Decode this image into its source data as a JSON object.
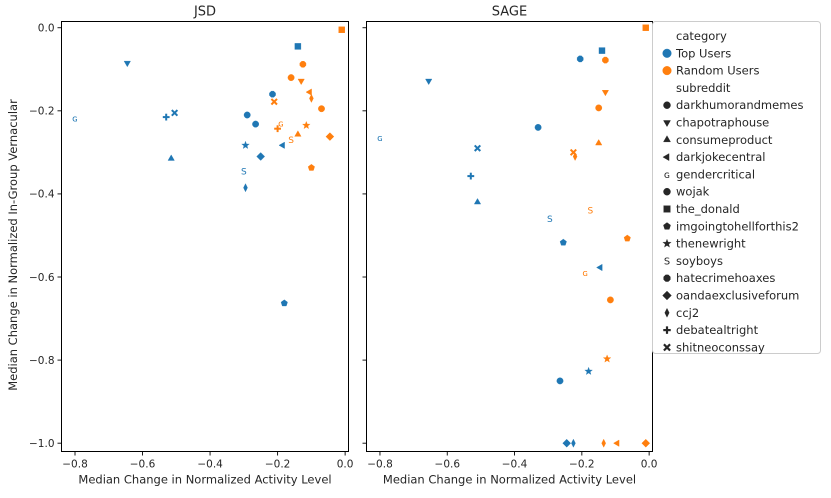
{
  "figure_ylabel": "Median Change in Normalized In-Group Vernacular",
  "legend": {
    "category_title": "category",
    "categories": [
      {
        "name": "Top Users",
        "color": "#1f77b4"
      },
      {
        "name": "Random Users",
        "color": "#ff7f0e"
      }
    ],
    "subreddit_title": "subreddit",
    "subreddits": [
      {
        "name": "darkhumorandmemes",
        "marker": "circle"
      },
      {
        "name": "chapotraphouse",
        "marker": "triangle-down"
      },
      {
        "name": "consumeproduct",
        "marker": "triangle-up"
      },
      {
        "name": "darkjokecentral",
        "marker": "triangle-left"
      },
      {
        "name": "gendercritical",
        "marker": "glyph-G"
      },
      {
        "name": "wojak",
        "marker": "circle"
      },
      {
        "name": "the_donald",
        "marker": "square"
      },
      {
        "name": "imgoingtohellforthis2",
        "marker": "pentagon"
      },
      {
        "name": "thenewright",
        "marker": "star"
      },
      {
        "name": "soyboys",
        "marker": "glyph-S"
      },
      {
        "name": "hatecrimehoaxes",
        "marker": "octagon"
      },
      {
        "name": "oandaexclusiveforum",
        "marker": "diamond"
      },
      {
        "name": "ccj2",
        "marker": "thin-diamond"
      },
      {
        "name": "debatealtright",
        "marker": "plus"
      },
      {
        "name": "shitneoconssay",
        "marker": "x"
      }
    ]
  },
  "chart_data": [
    {
      "type": "scatter",
      "title": "JSD",
      "xlabel": "Median Change in Normalized Activity Level",
      "ylabel": "Median Change in Normalized In-Group Vernacular",
      "xlim": [
        -0.84,
        0.01
      ],
      "ylim": [
        -1.02,
        0.015
      ],
      "xticks": [
        -0.8,
        -0.6,
        -0.4,
        -0.2,
        0.0
      ],
      "xtick_labels": [
        "−0.8",
        "−0.6",
        "−0.4",
        "−0.2",
        "0.0"
      ],
      "yticks": [
        0.0,
        -0.2,
        -0.4,
        -0.6,
        -0.8,
        -1.0
      ],
      "ytick_labels": [
        "0.0",
        "−0.2",
        "−0.4",
        "−0.6",
        "−0.8",
        "−1.0"
      ],
      "points": [
        {
          "category": "Top Users",
          "subreddit": "the_donald",
          "x": -0.14,
          "y": -0.045
        },
        {
          "category": "Top Users",
          "subreddit": "chapotraphouse",
          "x": -0.645,
          "y": -0.085
        },
        {
          "category": "Top Users",
          "subreddit": "hatecrimehoaxes",
          "x": -0.215,
          "y": -0.16
        },
        {
          "category": "Top Users",
          "subreddit": "gendercritical",
          "x": -0.8,
          "y": -0.218
        },
        {
          "category": "Top Users",
          "subreddit": "debatealtright",
          "x": -0.53,
          "y": -0.215
        },
        {
          "category": "Top Users",
          "subreddit": "shitneoconssay",
          "x": -0.505,
          "y": -0.205
        },
        {
          "category": "Top Users",
          "subreddit": "darkhumorandmemes",
          "x": -0.29,
          "y": -0.21
        },
        {
          "category": "Top Users",
          "subreddit": "wojak",
          "x": -0.265,
          "y": -0.232
        },
        {
          "category": "Top Users",
          "subreddit": "thenewright",
          "x": -0.295,
          "y": -0.283
        },
        {
          "category": "Top Users",
          "subreddit": "darkjokecentral",
          "x": -0.185,
          "y": -0.283
        },
        {
          "category": "Top Users",
          "subreddit": "oandaexclusiveforum",
          "x": -0.25,
          "y": -0.31
        },
        {
          "category": "Top Users",
          "subreddit": "consumeproduct",
          "x": -0.515,
          "y": -0.315
        },
        {
          "category": "Top Users",
          "subreddit": "soyboys",
          "x": -0.3,
          "y": -0.345
        },
        {
          "category": "Top Users",
          "subreddit": "ccj2",
          "x": -0.295,
          "y": -0.385
        },
        {
          "category": "Top Users",
          "subreddit": "imgoingtohellforthis2",
          "x": -0.18,
          "y": -0.663
        },
        {
          "category": "Random Users",
          "subreddit": "the_donald",
          "x": -0.01,
          "y": -0.005
        },
        {
          "category": "Random Users",
          "subreddit": "hatecrimehoaxes",
          "x": -0.125,
          "y": -0.088
        },
        {
          "category": "Random Users",
          "subreddit": "wojak",
          "x": -0.16,
          "y": -0.12
        },
        {
          "category": "Random Users",
          "subreddit": "chapotraphouse",
          "x": -0.13,
          "y": -0.128
        },
        {
          "category": "Random Users",
          "subreddit": "darkjokecentral",
          "x": -0.105,
          "y": -0.155
        },
        {
          "category": "Random Users",
          "subreddit": "ccj2",
          "x": -0.1,
          "y": -0.17
        },
        {
          "category": "Random Users",
          "subreddit": "shitneoconssay",
          "x": -0.21,
          "y": -0.178
        },
        {
          "category": "Random Users",
          "subreddit": "darkhumorandmemes",
          "x": -0.07,
          "y": -0.195
        },
        {
          "category": "Random Users",
          "subreddit": "gendercritical",
          "x": -0.19,
          "y": -0.23
        },
        {
          "category": "Random Users",
          "subreddit": "thenewright",
          "x": -0.115,
          "y": -0.235
        },
        {
          "category": "Random Users",
          "subreddit": "debatealtright",
          "x": -0.2,
          "y": -0.243
        },
        {
          "category": "Random Users",
          "subreddit": "consumeproduct",
          "x": -0.14,
          "y": -0.257
        },
        {
          "category": "Random Users",
          "subreddit": "oandaexclusiveforum",
          "x": -0.045,
          "y": -0.262
        },
        {
          "category": "Random Users",
          "subreddit": "soyboys",
          "x": -0.16,
          "y": -0.27
        },
        {
          "category": "Random Users",
          "subreddit": "imgoingtohellforthis2",
          "x": -0.1,
          "y": -0.337
        }
      ]
    },
    {
      "type": "scatter",
      "title": "SAGE",
      "xlabel": "Median Change in Normalized Activity Level",
      "ylabel": "",
      "xlim": [
        -0.84,
        0.01
      ],
      "ylim": [
        -1.02,
        0.015
      ],
      "xticks": [
        -0.8,
        -0.6,
        -0.4,
        -0.2,
        0.0
      ],
      "xtick_labels": [
        "−0.8",
        "−0.6",
        "−0.4",
        "−0.2",
        "0.0"
      ],
      "yticks": [
        0.0,
        -0.2,
        -0.4,
        -0.6,
        -0.8,
        -1.0
      ],
      "ytick_labels": [],
      "points": [
        {
          "category": "Top Users",
          "subreddit": "the_donald",
          "x": -0.14,
          "y": -0.055
        },
        {
          "category": "Top Users",
          "subreddit": "hatecrimehoaxes",
          "x": -0.205,
          "y": -0.075
        },
        {
          "category": "Top Users",
          "subreddit": "chapotraphouse",
          "x": -0.655,
          "y": -0.128
        },
        {
          "category": "Top Users",
          "subreddit": "darkhumorandmemes",
          "x": -0.33,
          "y": -0.24
        },
        {
          "category": "Top Users",
          "subreddit": "gendercritical",
          "x": -0.8,
          "y": -0.265
        },
        {
          "category": "Top Users",
          "subreddit": "shitneoconssay",
          "x": -0.51,
          "y": -0.29
        },
        {
          "category": "Top Users",
          "subreddit": "debatealtright",
          "x": -0.53,
          "y": -0.357
        },
        {
          "category": "Top Users",
          "subreddit": "consumeproduct",
          "x": -0.51,
          "y": -0.42
        },
        {
          "category": "Top Users",
          "subreddit": "soyboys",
          "x": -0.295,
          "y": -0.46
        },
        {
          "category": "Top Users",
          "subreddit": "imgoingtohellforthis2",
          "x": -0.255,
          "y": -0.517
        },
        {
          "category": "Top Users",
          "subreddit": "darkjokecentral",
          "x": -0.145,
          "y": -0.577
        },
        {
          "category": "Top Users",
          "subreddit": "wojak",
          "x": -0.265,
          "y": -0.85
        },
        {
          "category": "Top Users",
          "subreddit": "thenewright",
          "x": -0.18,
          "y": -0.827
        },
        {
          "category": "Top Users",
          "subreddit": "oandaexclusiveforum",
          "x": -0.245,
          "y": -1.0
        },
        {
          "category": "Top Users",
          "subreddit": "ccj2",
          "x": -0.225,
          "y": -1.0
        },
        {
          "category": "Random Users",
          "subreddit": "the_donald",
          "x": -0.01,
          "y": 0.0
        },
        {
          "category": "Random Users",
          "subreddit": "hatecrimehoaxes",
          "x": -0.13,
          "y": -0.078
        },
        {
          "category": "Random Users",
          "subreddit": "chapotraphouse",
          "x": -0.13,
          "y": -0.155
        },
        {
          "category": "Random Users",
          "subreddit": "wojak",
          "x": -0.15,
          "y": -0.193
        },
        {
          "category": "Random Users",
          "subreddit": "consumeproduct",
          "x": -0.15,
          "y": -0.278
        },
        {
          "category": "Random Users",
          "subreddit": "shitneoconssay",
          "x": -0.225,
          "y": -0.3
        },
        {
          "category": "Random Users",
          "subreddit": "ccj2",
          "x": -0.22,
          "y": -0.31
        },
        {
          "category": "Random Users",
          "subreddit": "soyboys",
          "x": -0.175,
          "y": -0.44
        },
        {
          "category": "Random Users",
          "subreddit": "imgoingtohellforthis2",
          "x": -0.065,
          "y": -0.507
        },
        {
          "category": "Random Users",
          "subreddit": "gendercritical",
          "x": -0.19,
          "y": -0.59
        },
        {
          "category": "Random Users",
          "subreddit": "darkhumorandmemes",
          "x": -0.115,
          "y": -0.655
        },
        {
          "category": "Random Users",
          "subreddit": "thenewright",
          "x": -0.125,
          "y": -0.797
        },
        {
          "category": "Random Users",
          "subreddit": "oandaexclusiveforum",
          "x": -0.01,
          "y": -1.0
        },
        {
          "category": "Random Users",
          "subreddit": "darkjokecentral",
          "x": -0.095,
          "y": -1.0
        },
        {
          "category": "Random Users",
          "subreddit": "ccj2",
          "x": -0.135,
          "y": -1.0
        }
      ]
    }
  ]
}
